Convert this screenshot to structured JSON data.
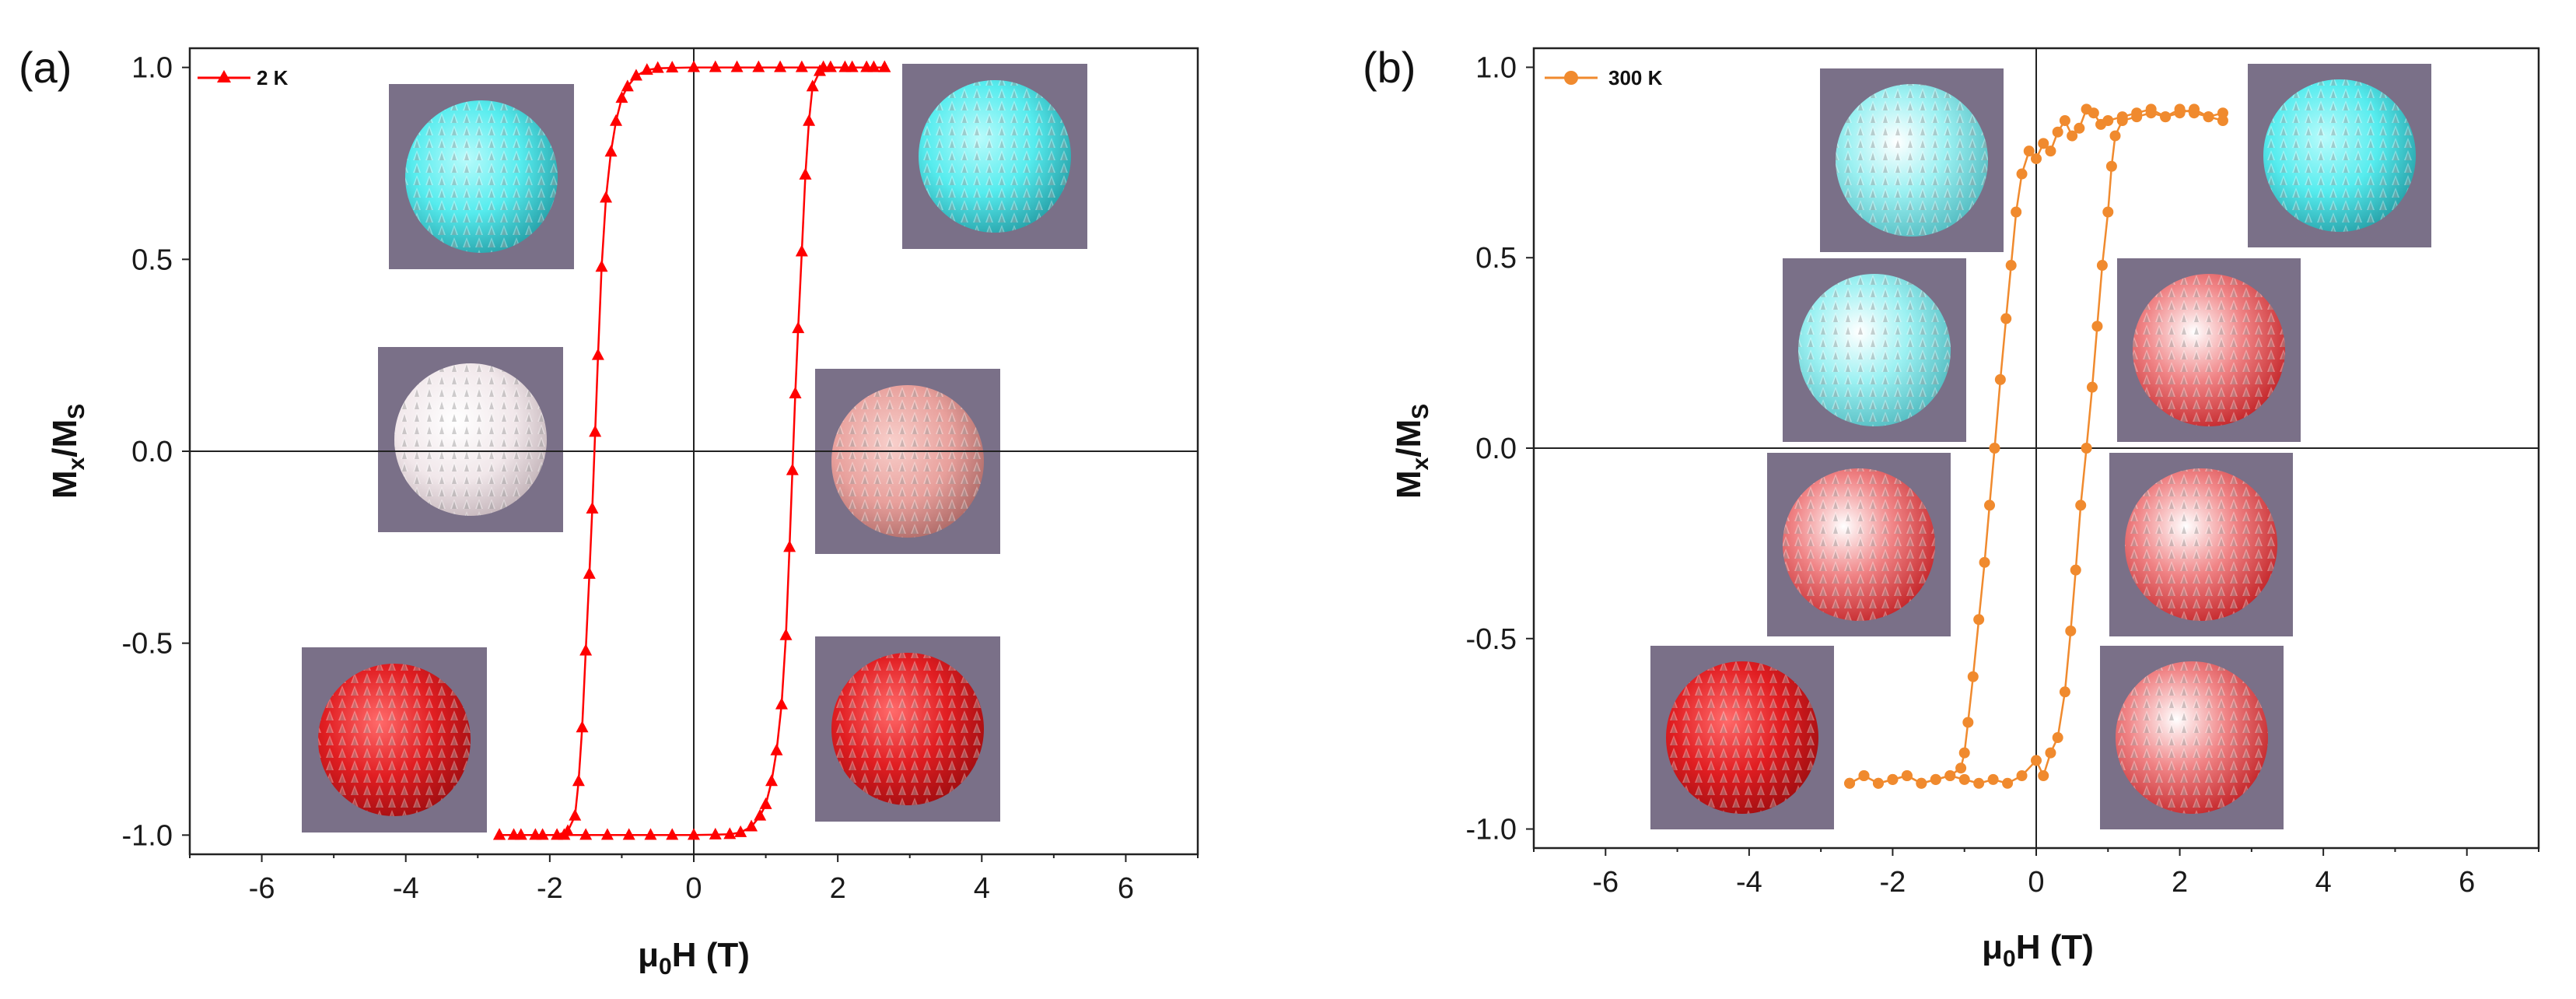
{
  "figure": {
    "sphere_legend": {
      "cyan": "#56ECEE",
      "white": "#F0E6E8",
      "pink": "#E8A09C",
      "red": "#E11E22",
      "mixed_cyan_white": "mixed",
      "mixed_red_white": "mixed"
    }
  },
  "chart_data": [
    {
      "type": "line",
      "panel_label": "(a)",
      "title": "",
      "xlabel_prefix": "μ",
      "xlabel_sub": "0",
      "xlabel_suffix": "H (T)",
      "ylabel_main": "M",
      "ylabel_sub1": "x",
      "ylabel_mid": "/M",
      "ylabel_sub2": "S",
      "xlim": [
        -7,
        7
      ],
      "ylim": [
        -1.05,
        1.05
      ],
      "xticks": [
        -6,
        -4,
        -2,
        0,
        2,
        4,
        6
      ],
      "xtick_labels": [
        "-6",
        "-4",
        "-2",
        "0",
        "2",
        "4",
        "6"
      ],
      "yticks": [
        -1.0,
        -0.5,
        0.0,
        0.5,
        1.0
      ],
      "ytick_labels": [
        "-1.0",
        "-0.5",
        "0.0",
        "0.5",
        "1.0"
      ],
      "series": [
        {
          "name": "2 K",
          "color": "#FF0000",
          "marker": "triangle",
          "descending": [
            [
              2.65,
              1.0
            ],
            [
              2.4,
              1.0
            ],
            [
              2.1,
              1.0
            ],
            [
              1.8,
              1.0
            ],
            [
              1.5,
              1.0
            ],
            [
              1.2,
              1.0
            ],
            [
              0.9,
              1.0
            ],
            [
              0.6,
              1.0
            ],
            [
              0.3,
              1.0
            ],
            [
              0.0,
              1.0
            ],
            [
              -0.3,
              0.999
            ],
            [
              -0.5,
              0.998
            ],
            [
              -0.65,
              0.993
            ],
            [
              -0.8,
              0.978
            ],
            [
              -0.92,
              0.95
            ],
            [
              -1.0,
              0.92
            ],
            [
              -1.08,
              0.86
            ],
            [
              -1.15,
              0.78
            ],
            [
              -1.22,
              0.66
            ],
            [
              -1.28,
              0.48
            ],
            [
              -1.33,
              0.25
            ],
            [
              -1.37,
              0.05
            ],
            [
              -1.41,
              -0.15
            ],
            [
              -1.45,
              -0.32
            ],
            [
              -1.5,
              -0.52
            ],
            [
              -1.55,
              -0.72
            ],
            [
              -1.6,
              -0.86
            ],
            [
              -1.65,
              -0.95
            ],
            [
              -1.75,
              -0.99
            ],
            [
              -1.9,
              -1.0
            ],
            [
              -2.2,
              -1.0
            ],
            [
              -2.5,
              -1.0
            ],
            [
              -2.7,
              -1.0
            ]
          ],
          "ascending": [
            [
              -2.7,
              -1.0
            ],
            [
              -2.4,
              -1.0
            ],
            [
              -2.1,
              -1.0
            ],
            [
              -1.8,
              -1.0
            ],
            [
              -1.5,
              -1.0
            ],
            [
              -1.2,
              -1.0
            ],
            [
              -0.9,
              -1.0
            ],
            [
              -0.6,
              -1.0
            ],
            [
              -0.3,
              -1.0
            ],
            [
              0.0,
              -1.0
            ],
            [
              0.3,
              -0.999
            ],
            [
              0.5,
              -0.998
            ],
            [
              0.65,
              -0.993
            ],
            [
              0.8,
              -0.978
            ],
            [
              0.92,
              -0.95
            ],
            [
              1.0,
              -0.92
            ],
            [
              1.08,
              -0.86
            ],
            [
              1.15,
              -0.78
            ],
            [
              1.22,
              -0.66
            ],
            [
              1.28,
              -0.48
            ],
            [
              1.33,
              -0.25
            ],
            [
              1.37,
              -0.05
            ],
            [
              1.41,
              0.15
            ],
            [
              1.45,
              0.32
            ],
            [
              1.5,
              0.52
            ],
            [
              1.55,
              0.72
            ],
            [
              1.6,
              0.86
            ],
            [
              1.65,
              0.95
            ],
            [
              1.75,
              0.99
            ],
            [
              1.9,
              1.0
            ],
            [
              2.2,
              1.0
            ],
            [
              2.5,
              1.0
            ],
            [
              2.65,
              1.0
            ]
          ]
        }
      ],
      "insets": [
        {
          "position": "upper-left",
          "color": "cyan"
        },
        {
          "position": "upper-right",
          "color": "cyan"
        },
        {
          "position": "middle-left",
          "color": "white"
        },
        {
          "position": "middle-right",
          "color": "pink"
        },
        {
          "position": "lower-left",
          "color": "red"
        },
        {
          "position": "lower-right",
          "color": "red"
        }
      ]
    },
    {
      "type": "scatter",
      "panel_label": "(b)",
      "title": "",
      "xlabel_prefix": "μ",
      "xlabel_sub": "0",
      "xlabel_suffix": "H (T)",
      "ylabel_main": "M",
      "ylabel_sub1": "x",
      "ylabel_mid": "/M",
      "ylabel_sub2": "S",
      "xlim": [
        -7,
        7
      ],
      "ylim": [
        -1.05,
        1.05
      ],
      "xticks": [
        -6,
        -4,
        -2,
        0,
        2,
        4,
        6
      ],
      "xtick_labels": [
        "-6",
        "-4",
        "-2",
        "0",
        "2",
        "4",
        "6"
      ],
      "yticks": [
        -1.0,
        -0.5,
        0.0,
        0.5,
        1.0
      ],
      "ytick_labels": [
        "-1.0",
        "-0.5",
        "0.0",
        "0.5",
        "1.0"
      ],
      "series": [
        {
          "name": "300 K",
          "color": "#F08A2E",
          "marker": "circle",
          "descending": [
            [
              2.6,
              0.88
            ],
            [
              2.4,
              0.87
            ],
            [
              2.2,
              0.89
            ],
            [
              2.0,
              0.88
            ],
            [
              1.8,
              0.87
            ],
            [
              1.6,
              0.89
            ],
            [
              1.4,
              0.88
            ],
            [
              1.2,
              0.87
            ],
            [
              1.0,
              0.86
            ],
            [
              0.9,
              0.85
            ],
            [
              0.8,
              0.88
            ],
            [
              0.7,
              0.89
            ],
            [
              0.6,
              0.84
            ],
            [
              0.5,
              0.82
            ],
            [
              0.4,
              0.86
            ],
            [
              0.3,
              0.83
            ],
            [
              0.2,
              0.78
            ],
            [
              0.1,
              0.8
            ],
            [
              0.0,
              0.76
            ],
            [
              -0.1,
              0.78
            ],
            [
              -0.2,
              0.72
            ],
            [
              -0.28,
              0.62
            ],
            [
              -0.35,
              0.48
            ],
            [
              -0.42,
              0.34
            ],
            [
              -0.5,
              0.18
            ],
            [
              -0.58,
              0.0
            ],
            [
              -0.65,
              -0.15
            ],
            [
              -0.72,
              -0.3
            ],
            [
              -0.8,
              -0.45
            ],
            [
              -0.88,
              -0.6
            ],
            [
              -0.95,
              -0.72
            ],
            [
              -1.0,
              -0.8
            ],
            [
              -1.05,
              -0.84
            ],
            [
              -1.2,
              -0.86
            ],
            [
              -1.4,
              -0.87
            ],
            [
              -1.6,
              -0.88
            ],
            [
              -1.8,
              -0.86
            ],
            [
              -2.0,
              -0.87
            ],
            [
              -2.2,
              -0.88
            ],
            [
              -2.4,
              -0.86
            ],
            [
              -2.6,
              -0.88
            ]
          ],
          "ascending": [
            [
              -2.6,
              -0.88
            ],
            [
              -2.4,
              -0.86
            ],
            [
              -2.2,
              -0.88
            ],
            [
              -2.0,
              -0.87
            ],
            [
              -1.8,
              -0.86
            ],
            [
              -1.6,
              -0.88
            ],
            [
              -1.4,
              -0.87
            ],
            [
              -1.2,
              -0.86
            ],
            [
              -1.0,
              -0.87
            ],
            [
              -0.8,
              -0.88
            ],
            [
              -0.6,
              -0.87
            ],
            [
              -0.4,
              -0.88
            ],
            [
              -0.2,
              -0.86
            ],
            [
              0.0,
              -0.82
            ],
            [
              0.1,
              -0.86
            ],
            [
              0.2,
              -0.8
            ],
            [
              0.3,
              -0.76
            ],
            [
              0.4,
              -0.64
            ],
            [
              0.48,
              -0.48
            ],
            [
              0.55,
              -0.32
            ],
            [
              0.62,
              -0.15
            ],
            [
              0.7,
              0.0
            ],
            [
              0.78,
              0.16
            ],
            [
              0.85,
              0.32
            ],
            [
              0.92,
              0.48
            ],
            [
              1.0,
              0.62
            ],
            [
              1.05,
              0.74
            ],
            [
              1.1,
              0.82
            ],
            [
              1.2,
              0.86
            ],
            [
              1.4,
              0.87
            ],
            [
              1.6,
              0.88
            ],
            [
              1.8,
              0.87
            ],
            [
              2.0,
              0.89
            ],
            [
              2.2,
              0.88
            ],
            [
              2.4,
              0.87
            ],
            [
              2.6,
              0.86
            ]
          ]
        }
      ],
      "insets": [
        {
          "position": "top-left",
          "color": "mixed_cyan_white"
        },
        {
          "position": "top-right",
          "color": "cyan"
        },
        {
          "position": "upper-mid-left",
          "color": "mixed_cyan_white"
        },
        {
          "position": "upper-mid-right",
          "color": "mixed_red_white"
        },
        {
          "position": "lower-mid-left",
          "color": "mixed_red_white"
        },
        {
          "position": "lower-mid-right",
          "color": "mixed_red_white"
        },
        {
          "position": "bottom-left",
          "color": "red"
        },
        {
          "position": "bottom-right",
          "color": "mixed_red_white"
        }
      ]
    }
  ]
}
